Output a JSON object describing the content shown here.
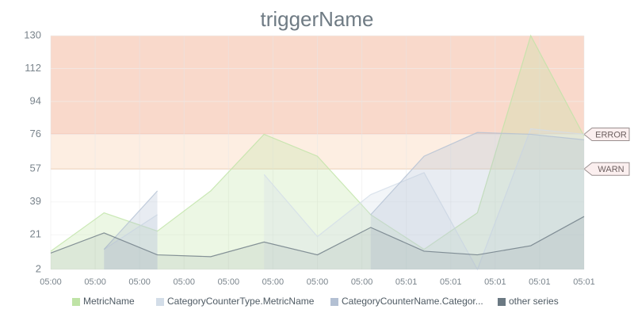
{
  "chart_data": {
    "type": "area",
    "title": "triggerName",
    "x": [
      0,
      1.2,
      2.4,
      3.6,
      4.8,
      6,
      7.2,
      8.4,
      9.6,
      10.8,
      12
    ],
    "xlim": [
      0,
      12
    ],
    "xticks": [
      {
        "value": 0,
        "label": "05:00"
      },
      {
        "value": 1,
        "label": "05:00"
      },
      {
        "value": 2,
        "label": "05:00"
      },
      {
        "value": 3,
        "label": "05:00"
      },
      {
        "value": 4,
        "label": "05:00"
      },
      {
        "value": 5,
        "label": "05:00"
      },
      {
        "value": 6,
        "label": "05:00"
      },
      {
        "value": 7,
        "label": "05:00"
      },
      {
        "value": 8,
        "label": "05:01"
      },
      {
        "value": 9,
        "label": "05:01"
      },
      {
        "value": 10,
        "label": "05:01"
      },
      {
        "value": 11,
        "label": "05:01"
      },
      {
        "value": 12,
        "label": "05:01"
      }
    ],
    "ylim": [
      2,
      130
    ],
    "yticks": [
      2,
      21,
      39,
      57,
      76,
      94,
      112,
      130
    ],
    "thresholds": [
      {
        "label": "ERROR",
        "value": 76,
        "color": "#f9d9cb"
      },
      {
        "label": "WARN",
        "value": 57,
        "color": "#fdeee2"
      }
    ],
    "series": [
      {
        "name": "MetricName",
        "color": "#bfe3a6",
        "values": [
          12,
          33,
          23,
          45,
          76,
          64,
          32,
          13,
          33,
          130,
          75
        ]
      },
      {
        "name": "CategoryCounterType.MetricName",
        "color": "#d3dde8",
        "values": [
          null,
          13,
          32,
          null,
          54,
          20,
          43,
          55,
          2,
          79,
          76
        ]
      },
      {
        "name": "CategoryCounterName.Categor...",
        "color": "#b3c0d3",
        "values": [
          null,
          13,
          45,
          null,
          null,
          null,
          32,
          64,
          77,
          76,
          73
        ]
      },
      {
        "name": "other series",
        "color": "#6b7983",
        "values": [
          11,
          22,
          10,
          9,
          17,
          10,
          25,
          12,
          10,
          15,
          31
        ]
      }
    ]
  }
}
